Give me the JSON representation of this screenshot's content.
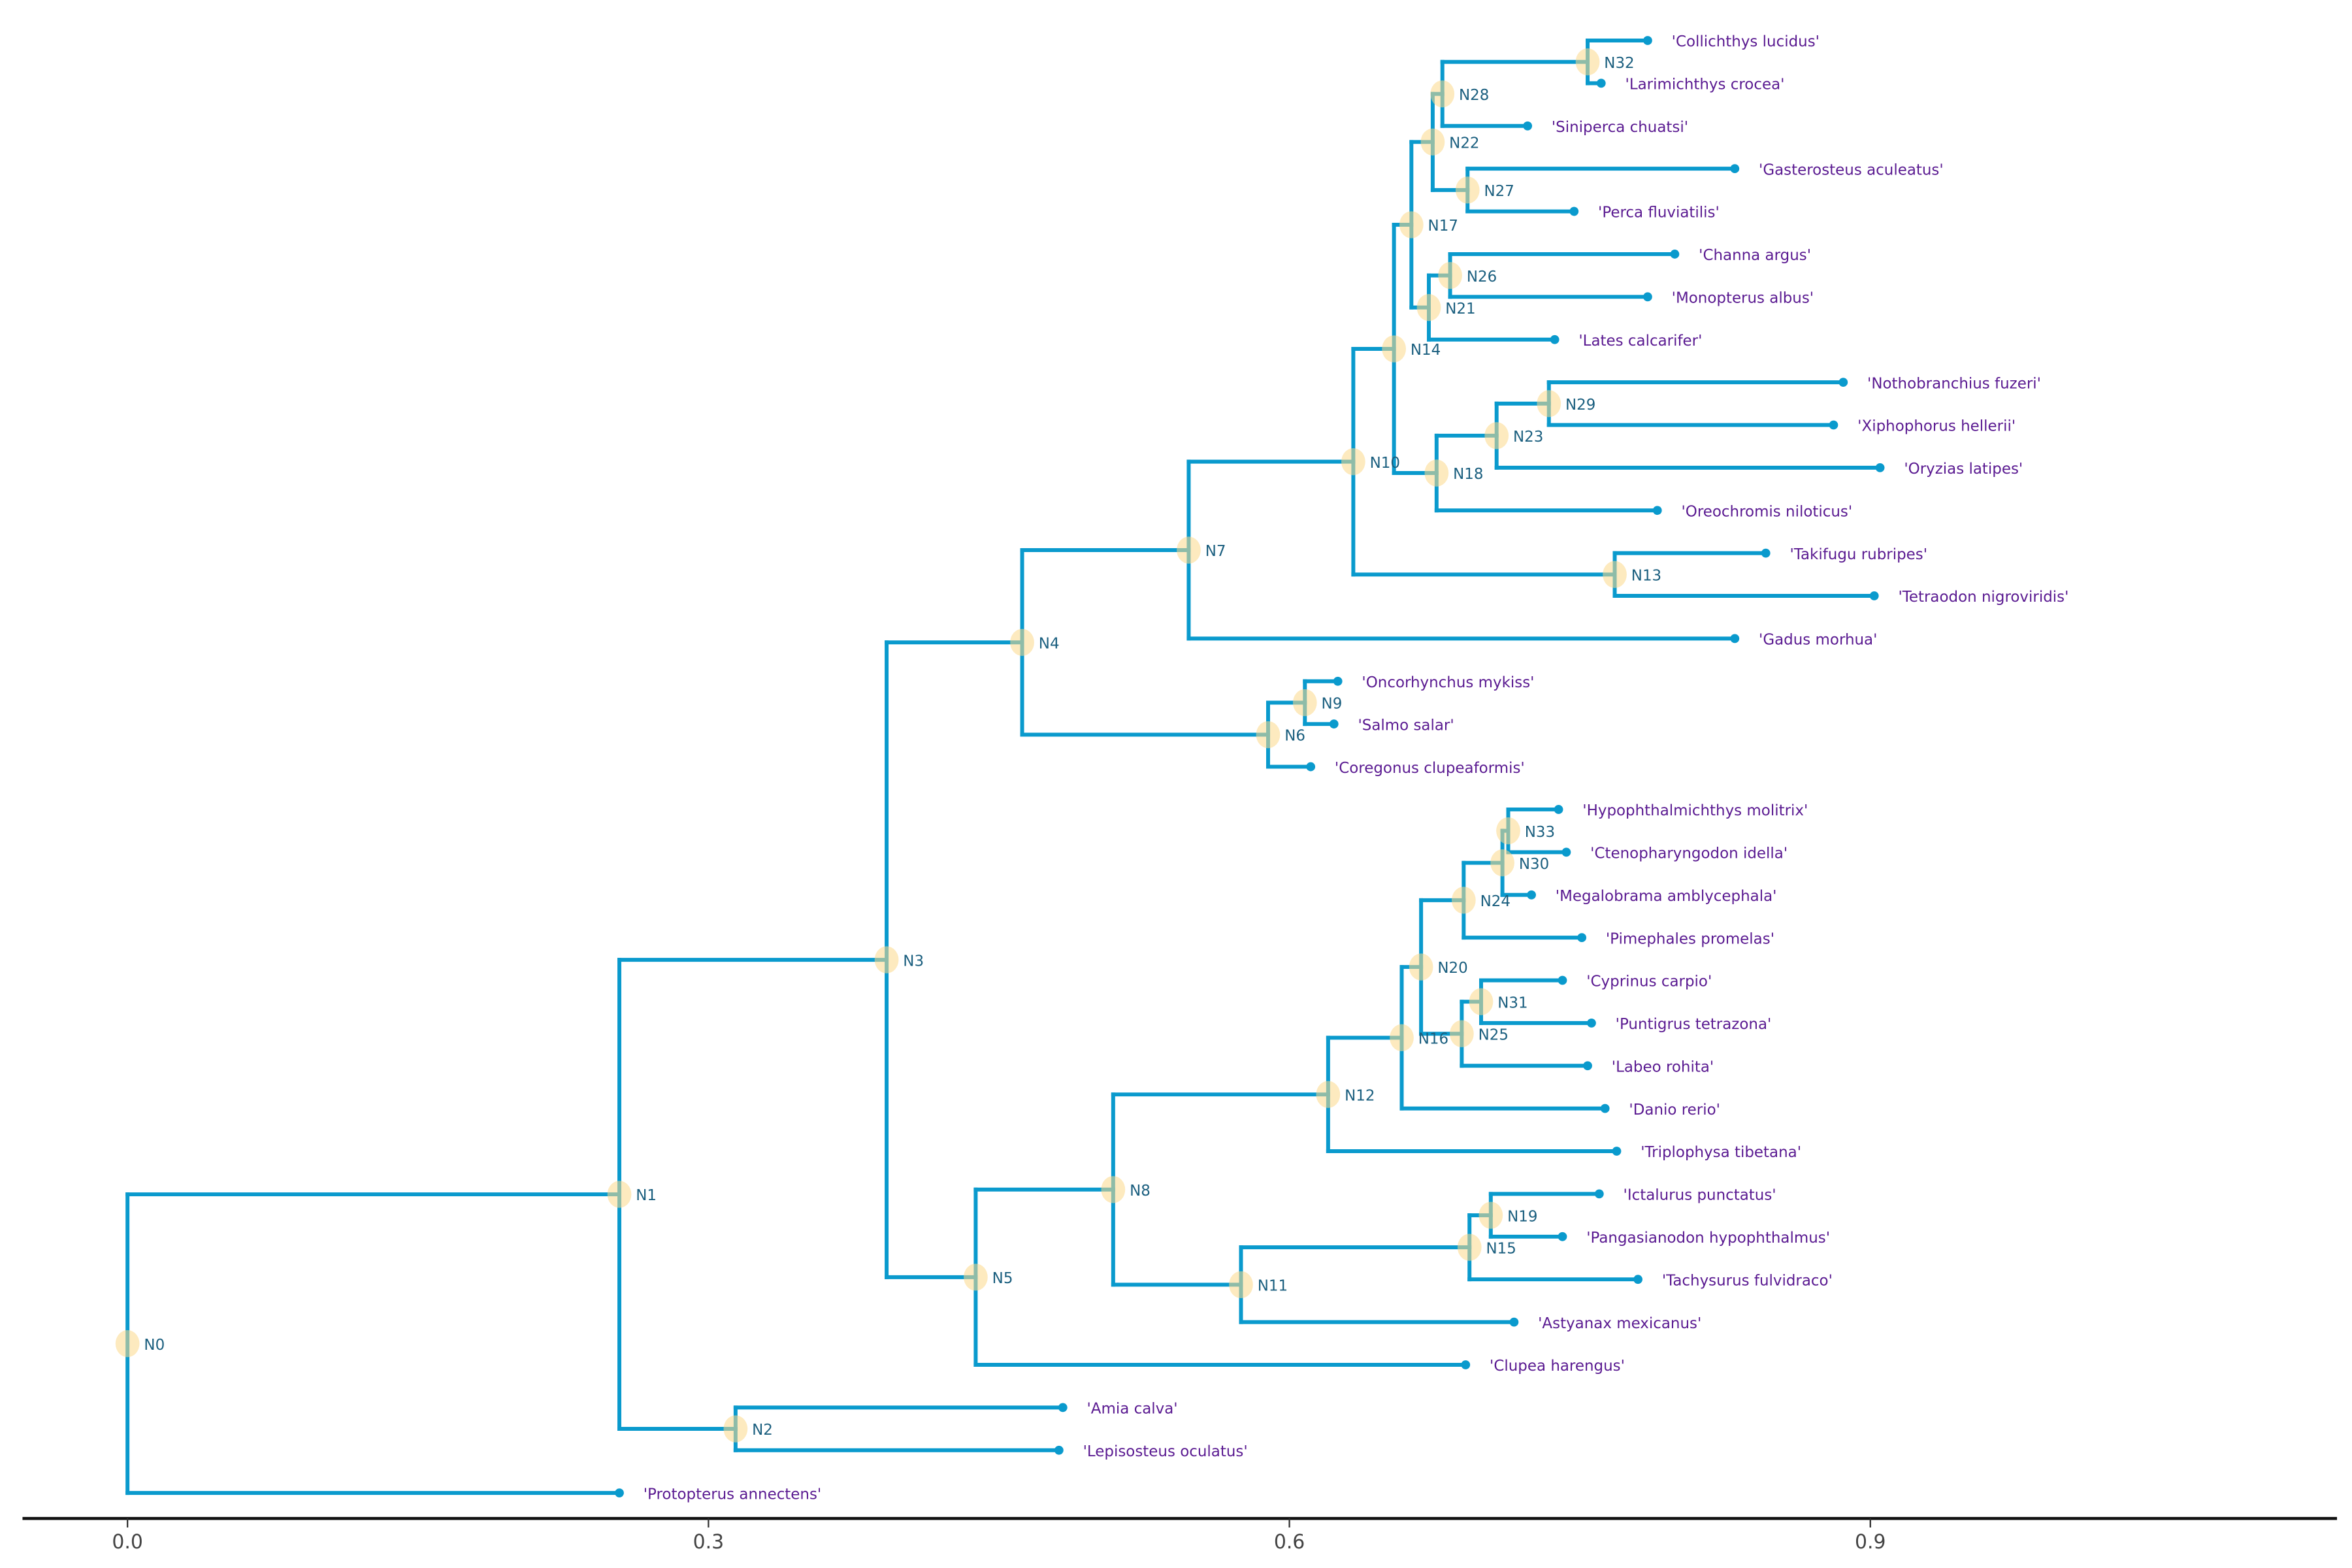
{
  "colors": {
    "branch": "#0a9acd",
    "node_marker": "#fbd88a",
    "node_label": "#1b5f7f",
    "tip_label": "#5a1a91"
  },
  "axis": {
    "ticks": [
      0.0,
      0.3,
      0.6,
      0.9
    ],
    "tick_labels": [
      "0.0",
      "0.3",
      "0.6",
      "0.9"
    ],
    "xlim": [
      -0.054,
      1.142
    ]
  },
  "tree": {
    "name": "N0",
    "x": 0,
    "children": [
      {
        "name": "N1",
        "x": 0.254,
        "children": [
          {
            "name": "N3",
            "x": 0.392,
            "children": [
              {
                "name": "N4",
                "x": 0.462,
                "children": [
                  {
                    "name": "N7",
                    "x": 0.548,
                    "children": [
                      {
                        "name": "N10",
                        "x": 0.633,
                        "children": [
                          {
                            "name": "N14",
                            "x": 0.654,
                            "children": [
                              {
                                "name": "N17",
                                "x": 0.663,
                                "children": [
                                  {
                                    "name": "N22",
                                    "x": 0.674,
                                    "children": [
                                      {
                                        "name": "N28",
                                        "x": 0.679,
                                        "children": [
                                          {
                                            "name": "N32",
                                            "x": 0.754,
                                            "children": [
                                              {
                                                "label": "'Collichthys lucidus'",
                                                "x": 0.785
                                              },
                                              {
                                                "label": "'Larimichthys crocea'",
                                                "x": 0.761
                                              }
                                            ]
                                          },
                                          {
                                            "label": "'Siniperca chuatsi'",
                                            "x": 0.723
                                          }
                                        ]
                                      },
                                      {
                                        "name": "N27",
                                        "x": 0.692,
                                        "children": [
                                          {
                                            "label": "'Gasterosteus aculeatus'",
                                            "x": 0.83
                                          },
                                          {
                                            "label": "'Perca fluviatilis'",
                                            "x": 0.747
                                          }
                                        ]
                                      }
                                    ]
                                  },
                                  {
                                    "name": "N21",
                                    "x": 0.672,
                                    "children": [
                                      {
                                        "name": "N26",
                                        "x": 0.683,
                                        "children": [
                                          {
                                            "label": "'Channa argus'",
                                            "x": 0.799
                                          },
                                          {
                                            "label": "'Monopterus albus'",
                                            "x": 0.785
                                          }
                                        ]
                                      },
                                      {
                                        "label": "'Lates calcarifer'",
                                        "x": 0.737
                                      }
                                    ]
                                  }
                                ]
                              },
                              {
                                "name": "N18",
                                "x": 0.676,
                                "children": [
                                  {
                                    "name": "N23",
                                    "x": 0.707,
                                    "children": [
                                      {
                                        "name": "N29",
                                        "x": 0.734,
                                        "children": [
                                          {
                                            "label": "'Nothobranchius fuzeri'",
                                            "x": 0.886
                                          },
                                          {
                                            "label": "'Xiphophorus hellerii'",
                                            "x": 0.881
                                          }
                                        ]
                                      },
                                      {
                                        "label": "'Oryzias latipes'",
                                        "x": 0.905
                                      }
                                    ]
                                  },
                                  {
                                    "label": "'Oreochromis niloticus'",
                                    "x": 0.79
                                  }
                                ]
                              }
                            ]
                          },
                          {
                            "name": "N13",
                            "x": 0.768,
                            "children": [
                              {
                                "label": "'Takifugu rubripes'",
                                "x": 0.846
                              },
                              {
                                "label": "'Tetraodon nigroviridis'",
                                "x": 0.902
                              }
                            ]
                          }
                        ]
                      },
                      {
                        "label": "'Gadus morhua'",
                        "x": 0.83
                      }
                    ]
                  },
                  {
                    "name": "N6",
                    "x": 0.589,
                    "children": [
                      {
                        "name": "N9",
                        "x": 0.608,
                        "children": [
                          {
                            "label": "'Oncorhynchus mykiss'",
                            "x": 0.625
                          },
                          {
                            "label": "'Salmo salar'",
                            "x": 0.623
                          }
                        ]
                      },
                      {
                        "label": "'Coregonus clupeaformis'",
                        "x": 0.611
                      }
                    ]
                  }
                ]
              },
              {
                "name": "N5",
                "x": 0.438,
                "children": [
                  {
                    "name": "N8",
                    "x": 0.509,
                    "children": [
                      {
                        "name": "N12",
                        "x": 0.62,
                        "children": [
                          {
                            "name": "N16",
                            "x": 0.658,
                            "children": [
                              {
                                "name": "N20",
                                "x": 0.668,
                                "children": [
                                  {
                                    "name": "N24",
                                    "x": 0.69,
                                    "children": [
                                      {
                                        "name": "N30",
                                        "x": 0.71,
                                        "children": [
                                          {
                                            "name": "N33",
                                            "x": 0.713,
                                            "children": [
                                              {
                                                "label": "'Hypophthalmichthys molitrix'",
                                                "x": 0.739
                                              },
                                              {
                                                "label": "'Ctenopharyngodon idella'",
                                                "x": 0.743
                                              }
                                            ]
                                          },
                                          {
                                            "label": "'Megalobrama amblycephala'",
                                            "x": 0.725
                                          }
                                        ]
                                      },
                                      {
                                        "label": "'Pimephales promelas'",
                                        "x": 0.751
                                      }
                                    ]
                                  },
                                  {
                                    "name": "N25",
                                    "x": 0.689,
                                    "children": [
                                      {
                                        "name": "N31",
                                        "x": 0.699,
                                        "children": [
                                          {
                                            "label": "'Cyprinus carpio'",
                                            "x": 0.741
                                          },
                                          {
                                            "label": "'Puntigrus tetrazona'",
                                            "x": 0.756
                                          }
                                        ]
                                      },
                                      {
                                        "label": "'Labeo rohita'",
                                        "x": 0.754
                                      }
                                    ]
                                  }
                                ]
                              },
                              {
                                "label": "'Danio rerio'",
                                "x": 0.763
                              }
                            ]
                          },
                          {
                            "label": "'Triplophysa tibetana'",
                            "x": 0.769
                          }
                        ]
                      },
                      {
                        "name": "N11",
                        "x": 0.575,
                        "children": [
                          {
                            "name": "N15",
                            "x": 0.693,
                            "children": [
                              {
                                "name": "N19",
                                "x": 0.704,
                                "children": [
                                  {
                                    "label": "'Ictalurus punctatus'",
                                    "x": 0.76
                                  },
                                  {
                                    "label": "'Pangasianodon hypophthalmus'",
                                    "x": 0.741
                                  }
                                ]
                              },
                              {
                                "label": "'Tachysurus fulvidraco'",
                                "x": 0.78
                              }
                            ]
                          },
                          {
                            "label": "'Astyanax mexicanus'",
                            "x": 0.716
                          }
                        ]
                      }
                    ]
                  },
                  {
                    "label": "'Clupea harengus'",
                    "x": 0.691
                  }
                ]
              }
            ]
          },
          {
            "name": "N2",
            "x": 0.314,
            "children": [
              {
                "label": "'Amia calva'",
                "x": 0.483
              },
              {
                "label": "'Lepisosteus oculatus'",
                "x": 0.481
              }
            ]
          }
        ]
      },
      {
        "label": "'Protopterus annectens'",
        "x": 0.254
      }
    ]
  }
}
